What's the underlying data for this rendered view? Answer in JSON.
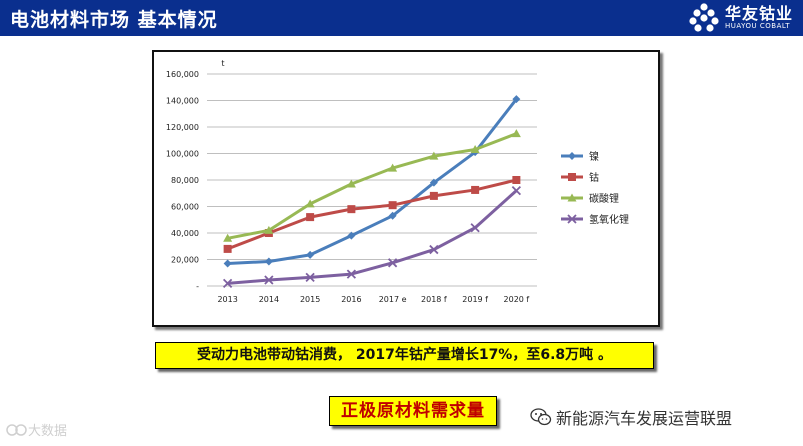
{
  "header": {
    "title": "电池材料市场 基本情况",
    "logo_cn": "华友钴业",
    "logo_en": "HUAYOU COBALT"
  },
  "chart_data": {
    "type": "line",
    "ylabel": "t",
    "categories": [
      "2013",
      "2014",
      "2015",
      "2016",
      "2017 e",
      "2018 f",
      "2019 f",
      "2020 f"
    ],
    "ylim": [
      0,
      160000
    ],
    "yticks": [
      "-",
      "20,000",
      "40,000",
      "60,000",
      "80,000",
      "100,000",
      "120,000",
      "140,000",
      "160,000"
    ],
    "grid": true,
    "legend": "right",
    "series": [
      {
        "name": "镍",
        "color": "#4a7ebb",
        "marker": "diamond",
        "values": [
          17000,
          18500,
          23500,
          38000,
          53000,
          78000,
          101000,
          141000
        ]
      },
      {
        "name": "钴",
        "color": "#be4b48",
        "marker": "square",
        "values": [
          28000,
          40000,
          52000,
          58000,
          61000,
          68000,
          72500,
          80000
        ]
      },
      {
        "name": "碳酸锂",
        "color": "#98b954",
        "marker": "triangle",
        "values": [
          36000,
          42000,
          62000,
          77000,
          89000,
          98000,
          103000,
          115000
        ]
      },
      {
        "name": "氢氧化锂",
        "color": "#7d60a0",
        "marker": "x",
        "values": [
          2000,
          4500,
          6500,
          9000,
          17500,
          27500,
          44000,
          72000
        ]
      }
    ]
  },
  "note_text": "受动力电池带动钴消费， 2017年钴产量增长17%，至6.8万吨 。",
  "section_label": "正极原材料需求量",
  "watermark_left": "大数据",
  "watermark_right": "新能源汽车发展运营联盟"
}
